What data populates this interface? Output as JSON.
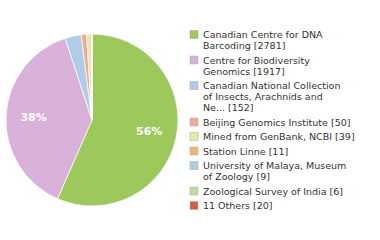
{
  "chart_data": {
    "type": "pie",
    "categories": [
      "Canadian Centre for DNA\nBarcoding [2781]",
      "Centre for Biodiversity\nGenomics [1917]",
      "Canadian National Collection\nof Insects, Arachnids and\nNe... [152]",
      "Beijing Genomics Institute [50]",
      "Mined from GenBank, NCBI [39]",
      "Station Linne [11]",
      "University of Malaya, Museum\nof Zoology [9]",
      "Zoological Survey of India [6]",
      "11 Others [20]"
    ],
    "values": [
      56,
      38,
      3,
      1,
      1,
      0,
      0,
      0,
      0
    ],
    "value_labels": [
      "56%",
      "38%",
      null,
      null,
      null,
      null,
      null,
      null,
      null
    ],
    "colors": [
      "#9dc85c",
      "#d8b0d8",
      "#b0cce8",
      "#f0a898",
      "#e8e8a8",
      "#f0b870",
      "#b0cce0",
      "#c0dca0",
      "#d06040"
    ],
    "data_labels": true,
    "legend": "right"
  }
}
